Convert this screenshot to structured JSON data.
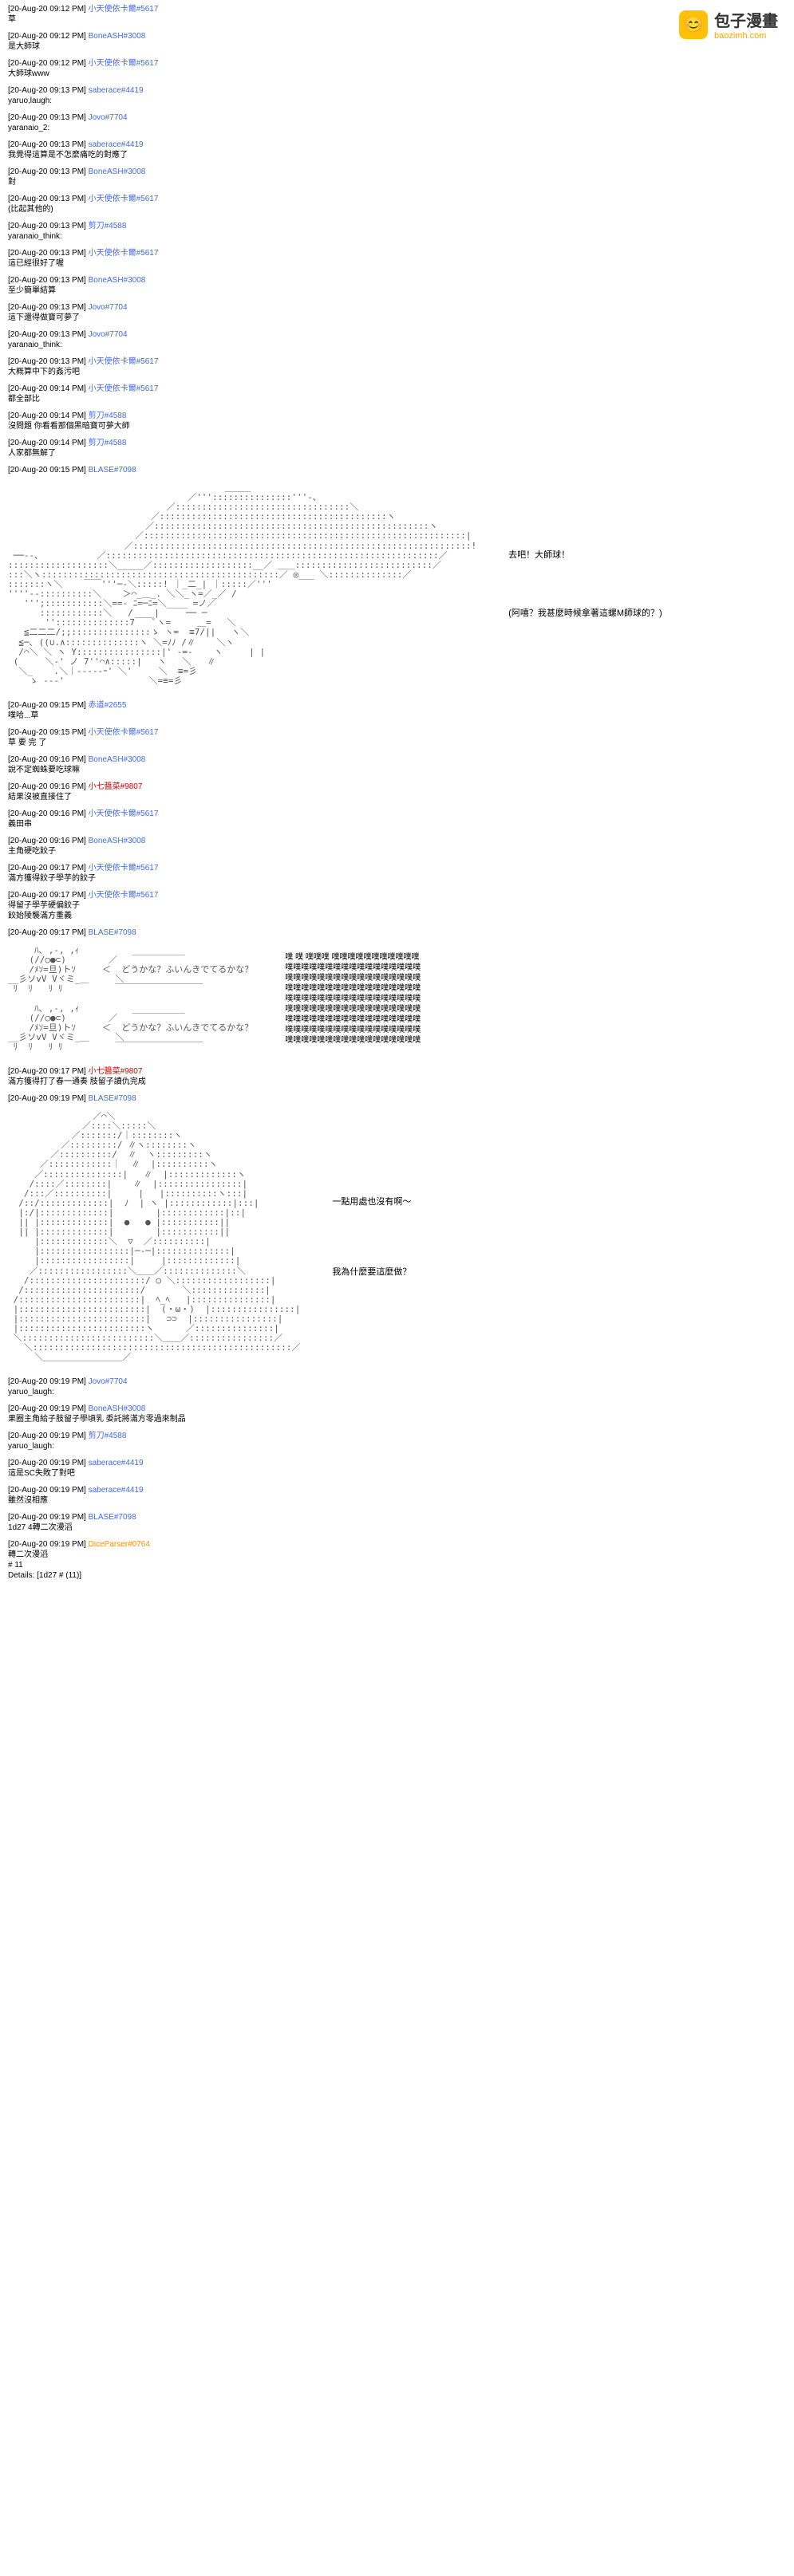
{
  "watermark": {
    "logo_emoji": "😊",
    "title": "包子漫畫",
    "url": "baozimh.com"
  },
  "messages": [
    {
      "ts": "[20-Aug-20 09:12 PM]",
      "user": "小天使依卡爾#5617",
      "color": "blue",
      "body": "草"
    },
    {
      "ts": "[20-Aug-20 09:12 PM]",
      "user": "BoneASH#3008",
      "color": "blue",
      "body": "是大師球"
    },
    {
      "ts": "[20-Aug-20 09:12 PM]",
      "user": "小天使依卡爾#5617",
      "color": "blue",
      "body": "大師球www"
    },
    {
      "ts": "[20-Aug-20 09:13 PM]",
      "user": "saberace#4419",
      "color": "blue",
      "body": "yaruo,laugh:"
    },
    {
      "ts": "[20-Aug-20 09:13 PM]",
      "user": "Jovo#7704",
      "color": "blue",
      "body": "yaranaio_2:"
    },
    {
      "ts": "[20-Aug-20 09:13 PM]",
      "user": "saberace#4419",
      "color": "blue",
      "body": "我覺得這算是不怎麼痛吃的對應了"
    },
    {
      "ts": "[20-Aug-20 09:13 PM]",
      "user": "BoneASH#3008",
      "color": "blue",
      "body": "對"
    },
    {
      "ts": "[20-Aug-20 09:13 PM]",
      "user": "小天使依卡爾#5617",
      "color": "blue",
      "body": "(比起其他的)"
    },
    {
      "ts": "[20-Aug-20 09:13 PM]",
      "user": "剪刀#4588",
      "color": "blue",
      "body": "yaranaio_think:"
    },
    {
      "ts": "[20-Aug-20 09:13 PM]",
      "user": "小天使依卡爾#5617",
      "color": "blue",
      "body": "這已經很好了喔"
    },
    {
      "ts": "[20-Aug-20 09:13 PM]",
      "user": "BoneASH#3008",
      "color": "blue",
      "body": "至少簡單結算"
    },
    {
      "ts": "[20-Aug-20 09:13 PM]",
      "user": "Jovo#7704",
      "color": "blue",
      "body": "這下還得做寶可夢了"
    },
    {
      "ts": "[20-Aug-20 09:13 PM]",
      "user": "Jovo#7704",
      "color": "blue",
      "body": "yaranaio_think:"
    },
    {
      "ts": "[20-Aug-20 09:13 PM]",
      "user": "小天使依卡爾#5617",
      "color": "blue",
      "body": "大概算中下的姦污吧"
    },
    {
      "ts": "[20-Aug-20 09:14 PM]",
      "user": "小天使依卡爾#5617",
      "color": "blue",
      "body": "都全部比"
    },
    {
      "ts": "[20-Aug-20 09:14 PM]",
      "user": "剪刀#4588",
      "color": "blue",
      "body": "沒問題 你看看那個黑暗寶可夢大師"
    },
    {
      "ts": "[20-Aug-20 09:14 PM]",
      "user": "剪刀#4588",
      "color": "blue",
      "body": "人家都無解了"
    },
    {
      "ts": "[20-Aug-20 09:15 PM]",
      "user": "BLASE#7098",
      "color": "blue",
      "body": "",
      "ascii": 1
    },
    {
      "ts": "[20-Aug-20 09:15 PM]",
      "user": "赤道#2655",
      "color": "blue",
      "body": "噗哈...草"
    },
    {
      "ts": "[20-Aug-20 09:15 PM]",
      "user": "小天使依卡爾#5617",
      "color": "blue",
      "body": "草 要 完 了"
    },
    {
      "ts": "[20-Aug-20 09:16 PM]",
      "user": "BoneASH#3008",
      "color": "blue",
      "body": "說不定蜘蛛要吃球嘛"
    },
    {
      "ts": "[20-Aug-20 09:16 PM]",
      "user": "小七醬菜#9807",
      "color": "red",
      "body": "結果沒被直接住了"
    },
    {
      "ts": "[20-Aug-20 09:16 PM]",
      "user": "小天使依卡爾#5617",
      "color": "blue",
      "body": "義田串"
    },
    {
      "ts": "[20-Aug-20 09:16 PM]",
      "user": "BoneASH#3008",
      "color": "blue",
      "body": "主角硬吃餃子"
    },
    {
      "ts": "[20-Aug-20 09:17 PM]",
      "user": "小天使依卡爾#5617",
      "color": "blue",
      "body": "滿方獲得餃子學芋的餃子"
    },
    {
      "ts": "[20-Aug-20 09:17 PM]",
      "user": "小天使依卡爾#5617",
      "color": "blue",
      "body": "得留子學芋硬偏餃子\n餃始陵襲滿方重義"
    },
    {
      "ts": "[20-Aug-20 09:17 PM]",
      "user": "BLASE#7098",
      "color": "blue",
      "body": "",
      "ascii": 2
    },
    {
      "ts": "[20-Aug-20 09:17 PM]",
      "user": "小七醬菜#9807",
      "color": "red",
      "body": "滿方獲得打了春一通奏 肢留子讀仇完成"
    },
    {
      "ts": "[20-Aug-20 09:19 PM]",
      "user": "BLASE#7098",
      "color": "blue",
      "body": "",
      "ascii": 3
    },
    {
      "ts": "[20-Aug-20 09:19 PM]",
      "user": "Jovo#7704",
      "color": "blue",
      "body": "yaruo_laugh:"
    },
    {
      "ts": "[20-Aug-20 09:19 PM]",
      "user": "BoneASH#3008",
      "color": "blue",
      "body": "果圈主角給子肢留子學頃乳 委託將滿方零過來制品"
    },
    {
      "ts": "[20-Aug-20 09:19 PM]",
      "user": "剪刀#4588",
      "color": "blue",
      "body": "yaruo_laugh:"
    },
    {
      "ts": "[20-Aug-20 09:19 PM]",
      "user": "saberace#4419",
      "color": "blue",
      "body": "這是SC失敗了對吧"
    },
    {
      "ts": "[20-Aug-20 09:19 PM]",
      "user": "saberace#4419",
      "color": "blue",
      "body": "雖然沒相應"
    },
    {
      "ts": "[20-Aug-20 09:19 PM]",
      "user": "BLASE#7098",
      "color": "blue",
      "body": "1d27 4轉二次漫滔"
    },
    {
      "ts": "[20-Aug-20 09:19 PM]",
      "user": "DiceParser#0764",
      "color": "orange",
      "body": "轉二次漫滔\n# 11\nDetails: [1d27 # (11)]"
    }
  ],
  "ascii_1_side": {
    "line1": "去吧！大師球！",
    "line2": "(阿嘻？我甚麼時候拿著這螺M師球的？)"
  },
  "ascii_2_speech": {
    "s1": "どうかな？ふいんきでてるかな？",
    "s2": "どうかな？ふいんきでてるかな？",
    "chorus": "噗 噗 噗噗噗 噗噗噗噗噗噗噗噗噗噗噗\n噗噗噗噗噗噗噗噗噗噗噗噗噗噗噗噗噗\n噗噗噗噗噗噗噗噗噗噗噗噗噗噗噗噗噗\n噗噗噗噗噗噗噗噗噗噗噗噗噗噗噗噗噗\n噗噗噗噗噗噗噗噗噗噗噗噗噗噗噗噗噗\n噗噗噗噗噗噗噗噗噗噗噗噗噗噗噗噗噗\n噗噗噗噗噗噗噗噗噗噗噗噗噗噗噗噗噗\n噗噗噗噗噗噗噗噗噗噗噗噗噗噗噗噗噗\n噗噗噗噗噗噗噗噗噗噗噗噗噗噗噗噗噗"
  },
  "ascii_3_side": {
    "line1": "一點用處也沒有啊～",
    "line2": "我為什麼要這麼做？"
  }
}
